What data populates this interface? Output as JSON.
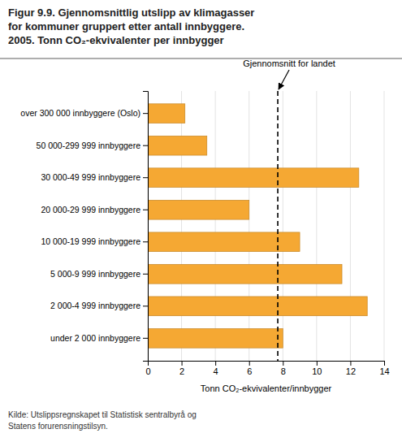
{
  "chart_data": {
    "type": "bar",
    "orientation": "horizontal",
    "title": "Figur 9.9. Gjennomsnittlig utslipp av klimagasser\nfor kommuner gruppert etter antall innbyggere.\n2005. Tonn CO₂-ekvivalenter per innbygger",
    "categories": [
      "over 300 000 innbyggere (Oslo)",
      "50 000-299 999 innbyggere",
      "30 000-49 999 innbyggere",
      "20 000-29 999 innbyggere",
      "10 000-19 999 innbyggere",
      "5 000-9 999 innbyggere",
      "2 000-4 999 innbyggere",
      "under 2 000 innbyggere"
    ],
    "values": [
      2.2,
      3.5,
      12.5,
      6.0,
      9.0,
      11.5,
      13.0,
      8.0
    ],
    "color": "#F5A833",
    "xlabel": "Tonn CO₂-ekvivalenter/innbygger",
    "xlim": [
      0,
      14
    ],
    "xticks": [
      0,
      2,
      4,
      6,
      8,
      10,
      12,
      14
    ],
    "grid": true,
    "annotations": [
      {
        "text": "Gjennomsnitt for landet",
        "x": 7.7
      }
    ],
    "source": "Kilde: Utslippsregnskapet til Statistisk sentralbyrå og\nStatens forurensningstilsyn."
  }
}
